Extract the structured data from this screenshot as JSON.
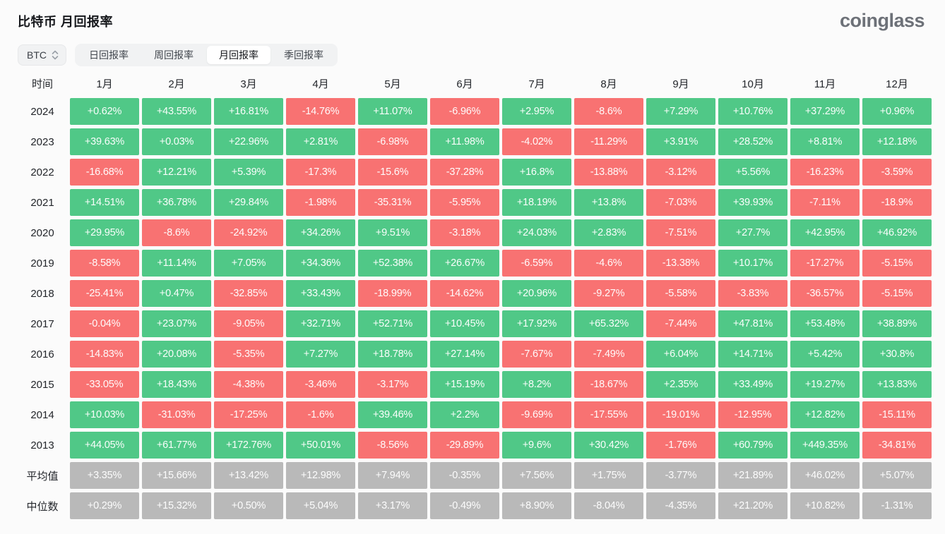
{
  "page": {
    "title": "比特币 月回报率",
    "logo": "coinglass"
  },
  "controls": {
    "coin_selector": {
      "value": "BTC"
    },
    "tabs": [
      {
        "label": "日回报率",
        "active": false
      },
      {
        "label": "周回报率",
        "active": false
      },
      {
        "label": "月回报率",
        "active": true
      },
      {
        "label": "季回报率",
        "active": false
      }
    ]
  },
  "colors": {
    "positive": "#50c887",
    "negative": "#f87272",
    "neutral": "#b9b9b9",
    "cell_text": "#ffffff",
    "background": "#fbfbfb"
  },
  "table": {
    "corner_header": "时间",
    "month_headers": [
      "1月",
      "2月",
      "3月",
      "4月",
      "5月",
      "6月",
      "7月",
      "8月",
      "9月",
      "10月",
      "11月",
      "12月"
    ],
    "rows": [
      {
        "label": "2024",
        "neutral": false,
        "values": [
          "+0.62%",
          "+43.55%",
          "+16.81%",
          "-14.76%",
          "+11.07%",
          "-6.96%",
          "+2.95%",
          "-8.6%",
          "+7.29%",
          "+10.76%",
          "+37.29%",
          "+0.96%"
        ]
      },
      {
        "label": "2023",
        "neutral": false,
        "values": [
          "+39.63%",
          "+0.03%",
          "+22.96%",
          "+2.81%",
          "-6.98%",
          "+11.98%",
          "-4.02%",
          "-11.29%",
          "+3.91%",
          "+28.52%",
          "+8.81%",
          "+12.18%"
        ]
      },
      {
        "label": "2022",
        "neutral": false,
        "values": [
          "-16.68%",
          "+12.21%",
          "+5.39%",
          "-17.3%",
          "-15.6%",
          "-37.28%",
          "+16.8%",
          "-13.88%",
          "-3.12%",
          "+5.56%",
          "-16.23%",
          "-3.59%"
        ]
      },
      {
        "label": "2021",
        "neutral": false,
        "values": [
          "+14.51%",
          "+36.78%",
          "+29.84%",
          "-1.98%",
          "-35.31%",
          "-5.95%",
          "+18.19%",
          "+13.8%",
          "-7.03%",
          "+39.93%",
          "-7.11%",
          "-18.9%"
        ]
      },
      {
        "label": "2020",
        "neutral": false,
        "values": [
          "+29.95%",
          "-8.6%",
          "-24.92%",
          "+34.26%",
          "+9.51%",
          "-3.18%",
          "+24.03%",
          "+2.83%",
          "-7.51%",
          "+27.7%",
          "+42.95%",
          "+46.92%"
        ]
      },
      {
        "label": "2019",
        "neutral": false,
        "values": [
          "-8.58%",
          "+11.14%",
          "+7.05%",
          "+34.36%",
          "+52.38%",
          "+26.67%",
          "-6.59%",
          "-4.6%",
          "-13.38%",
          "+10.17%",
          "-17.27%",
          "-5.15%"
        ]
      },
      {
        "label": "2018",
        "neutral": false,
        "values": [
          "-25.41%",
          "+0.47%",
          "-32.85%",
          "+33.43%",
          "-18.99%",
          "-14.62%",
          "+20.96%",
          "-9.27%",
          "-5.58%",
          "-3.83%",
          "-36.57%",
          "-5.15%"
        ]
      },
      {
        "label": "2017",
        "neutral": false,
        "values": [
          "-0.04%",
          "+23.07%",
          "-9.05%",
          "+32.71%",
          "+52.71%",
          "+10.45%",
          "+17.92%",
          "+65.32%",
          "-7.44%",
          "+47.81%",
          "+53.48%",
          "+38.89%"
        ]
      },
      {
        "label": "2016",
        "neutral": false,
        "values": [
          "-14.83%",
          "+20.08%",
          "-5.35%",
          "+7.27%",
          "+18.78%",
          "+27.14%",
          "-7.67%",
          "-7.49%",
          "+6.04%",
          "+14.71%",
          "+5.42%",
          "+30.8%"
        ]
      },
      {
        "label": "2015",
        "neutral": false,
        "values": [
          "-33.05%",
          "+18.43%",
          "-4.38%",
          "-3.46%",
          "-3.17%",
          "+15.19%",
          "+8.2%",
          "-18.67%",
          "+2.35%",
          "+33.49%",
          "+19.27%",
          "+13.83%"
        ]
      },
      {
        "label": "2014",
        "neutral": false,
        "values": [
          "+10.03%",
          "-31.03%",
          "-17.25%",
          "-1.6%",
          "+39.46%",
          "+2.2%",
          "-9.69%",
          "-17.55%",
          "-19.01%",
          "-12.95%",
          "+12.82%",
          "-15.11%"
        ]
      },
      {
        "label": "2013",
        "neutral": false,
        "values": [
          "+44.05%",
          "+61.77%",
          "+172.76%",
          "+50.01%",
          "-8.56%",
          "-29.89%",
          "+9.6%",
          "+30.42%",
          "-1.76%",
          "+60.79%",
          "+449.35%",
          "-34.81%"
        ]
      },
      {
        "label": "平均值",
        "neutral": true,
        "values": [
          "+3.35%",
          "+15.66%",
          "+13.42%",
          "+12.98%",
          "+7.94%",
          "-0.35%",
          "+7.56%",
          "+1.75%",
          "-3.77%",
          "+21.89%",
          "+46.02%",
          "+5.07%"
        ]
      },
      {
        "label": "中位数",
        "neutral": true,
        "values": [
          "+0.29%",
          "+15.32%",
          "+0.50%",
          "+5.04%",
          "+3.17%",
          "-0.49%",
          "+8.90%",
          "-8.04%",
          "-4.35%",
          "+21.20%",
          "+10.82%",
          "-1.31%"
        ]
      }
    ]
  }
}
